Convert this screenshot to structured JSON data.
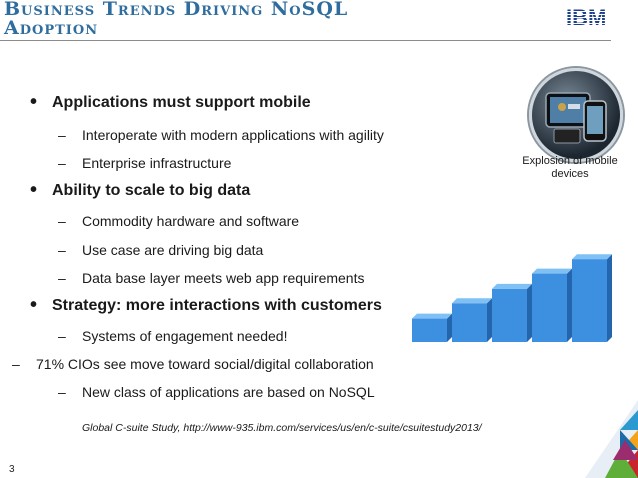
{
  "header": {
    "title_line1": "Business Trends Driving NoSQL",
    "title_line2": "Adoption",
    "logo_text": "IBM"
  },
  "bullets": [
    {
      "text": "Applications must support mobile",
      "subs": [
        "Interoperate with modern applications with agility",
        "Enterprise infrastructure"
      ]
    },
    {
      "text": "Ability to scale to big data",
      "subs": [
        "Commodity hardware and software",
        "Use case are driving big data",
        "Data base layer meets web app requirements"
      ]
    },
    {
      "text": "Strategy: more interactions with customers",
      "subs": [
        "Systems of engagement needed!"
      ]
    }
  ],
  "extra_dash": "71% CIOs see move toward social/digital collaboration",
  "extra_sub": "New class of applications are based on NoSQL",
  "citation": "Global C-suite Study, http://www-935.ibm.com/services/us/en/c-suite/csuitestudy2013/",
  "image_caption": "Explosion of mobile devices",
  "page_number": "3",
  "growth_graphic": {
    "relative_heights": [
      0.26,
      0.43,
      0.59,
      0.76,
      0.92
    ],
    "bar_color": "#3d8fe0"
  },
  "colors": {
    "title": "#2f6d9e",
    "bar": "#3d8fe0",
    "bar_top": "#7fc0f5"
  },
  "icons": {
    "logo": "ibm-logo",
    "bullet": "bullet-dot",
    "dash": "dash-marker",
    "photo": "mobile-devices-photo"
  }
}
